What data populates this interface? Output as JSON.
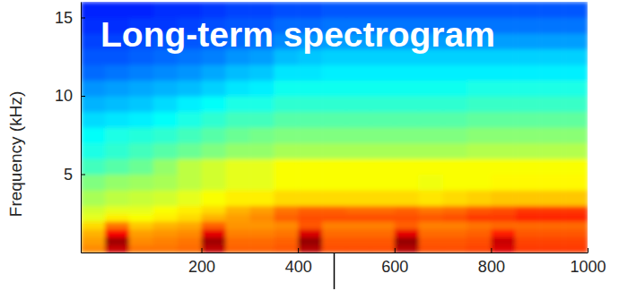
{
  "chart_data": {
    "type": "heatmap",
    "title": "Long-term spectrogram",
    "ylabel": "Frequency (kHz)",
    "xlim": [
      -50,
      1000
    ],
    "xticks": [
      200,
      400,
      600,
      800,
      1000
    ],
    "ylim": [
      0,
      16
    ],
    "yticks": [
      5,
      10,
      15
    ],
    "x_edges": [
      -50,
      0,
      50,
      100,
      150,
      200,
      250,
      300,
      350,
      400,
      450,
      500,
      550,
      600,
      650,
      700,
      750,
      800,
      850,
      900,
      950,
      1000
    ],
    "y_edges": [
      0,
      0.5,
      1,
      1.5,
      2,
      2.5,
      3,
      4,
      5,
      6,
      7,
      8,
      9,
      10,
      11,
      12,
      13,
      14,
      15,
      16
    ],
    "color_range": [
      0,
      100
    ],
    "cells": [
      [
        74,
        93,
        76,
        76,
        77,
        94,
        78,
        78,
        79,
        95,
        80,
        80,
        80,
        95,
        80,
        80,
        81,
        91,
        82,
        82,
        82
      ],
      [
        72,
        97,
        74,
        75,
        76,
        97,
        77,
        77,
        78,
        98,
        79,
        79,
        79,
        98,
        79,
        79,
        80,
        93,
        81,
        81,
        81
      ],
      [
        70,
        88,
        72,
        73,
        74,
        90,
        75,
        75,
        76,
        91,
        77,
        77,
        77,
        90,
        77,
        77,
        78,
        85,
        79,
        79,
        79
      ],
      [
        66,
        76,
        68,
        70,
        71,
        78,
        73,
        73,
        74,
        79,
        75,
        75,
        75,
        78,
        75,
        75,
        76,
        77,
        77,
        77,
        77
      ],
      [
        60,
        64,
        62,
        64,
        66,
        70,
        72,
        74,
        78,
        80,
        80,
        80,
        80,
        80,
        79,
        80,
        82,
        82,
        84,
        84,
        84
      ],
      [
        58,
        60,
        60,
        62,
        64,
        66,
        70,
        72,
        76,
        78,
        78,
        77,
        77,
        78,
        76,
        77,
        79,
        80,
        82,
        82,
        82
      ],
      [
        54,
        56,
        57,
        58,
        60,
        62,
        64,
        64,
        66,
        66,
        66,
        66,
        66,
        66,
        65,
        66,
        67,
        68,
        68,
        68,
        68
      ],
      [
        50,
        52,
        53,
        54,
        56,
        58,
        60,
        60,
        62,
        62,
        62,
        62,
        62,
        62,
        61,
        62,
        62,
        63,
        63,
        63,
        63
      ],
      [
        44,
        46,
        48,
        52,
        56,
        58,
        60,
        60,
        62,
        62,
        62,
        62,
        62,
        62,
        62,
        62,
        62,
        62,
        62,
        62,
        62
      ],
      [
        40,
        42,
        44,
        46,
        48,
        50,
        52,
        52,
        54,
        54,
        54,
        54,
        54,
        54,
        54,
        54,
        55,
        55,
        55,
        55,
        55
      ],
      [
        38,
        40,
        41,
        42,
        44,
        46,
        48,
        49,
        50,
        50,
        50,
        50,
        50,
        50,
        50,
        50,
        51,
        51,
        51,
        51,
        51
      ],
      [
        34,
        35,
        36,
        38,
        40,
        42,
        44,
        44,
        46,
        46,
        46,
        46,
        46,
        46,
        46,
        46,
        47,
        47,
        47,
        47,
        47
      ],
      [
        30,
        31,
        32,
        34,
        36,
        38,
        40,
        40,
        42,
        42,
        42,
        42,
        42,
        42,
        42,
        42,
        43,
        43,
        43,
        43,
        43
      ],
      [
        27,
        28,
        29,
        30,
        31,
        33,
        35,
        36,
        39,
        39,
        39,
        39,
        39,
        39,
        39,
        39,
        40,
        40,
        40,
        40,
        40
      ],
      [
        23,
        24,
        25,
        26,
        27,
        29,
        31,
        32,
        35,
        35,
        36,
        36,
        36,
        36,
        36,
        36,
        36,
        36,
        36,
        36,
        36
      ],
      [
        21,
        21,
        22,
        23,
        24,
        25,
        27,
        28,
        31,
        32,
        33,
        33,
        33,
        33,
        33,
        33,
        33,
        33,
        33,
        33,
        33
      ],
      [
        19,
        19,
        20,
        21,
        21,
        22,
        23,
        24,
        26,
        27,
        28,
        28,
        28,
        28,
        28,
        28,
        28,
        28,
        28,
        28,
        28
      ],
      [
        17,
        17,
        18,
        18,
        19,
        20,
        21,
        21,
        23,
        23,
        24,
        24,
        24,
        24,
        24,
        24,
        24,
        24,
        24,
        24,
        24
      ],
      [
        16,
        16,
        16,
        17,
        17,
        18,
        19,
        19,
        20,
        20,
        21,
        21,
        21,
        21,
        21,
        21,
        21,
        21,
        21,
        21,
        21
      ]
    ],
    "vline_x": 475,
    "grid": false
  }
}
